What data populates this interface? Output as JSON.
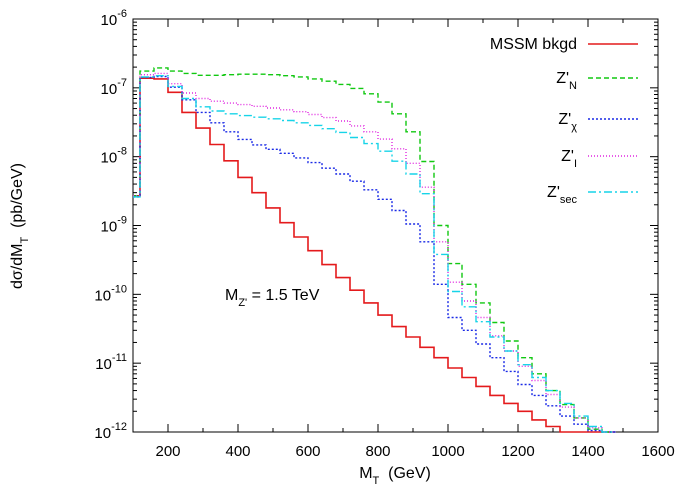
{
  "chart_data": {
    "type": "line",
    "title": "",
    "xlabel": {
      "main": "M",
      "sub": "T",
      "rest": "  (GeV)"
    },
    "ylabel": {
      "main": "dσ/dM",
      "sub": "T",
      "rest": "  (pb/GeV)"
    },
    "xlim": [
      100,
      1600
    ],
    "ylim": [
      1e-12,
      1e-06
    ],
    "yscale": "log",
    "step": true,
    "bin_width": 40,
    "x_bin_starts": [
      100,
      120,
      160,
      200,
      240,
      280,
      320,
      360,
      400,
      440,
      480,
      520,
      560,
      600,
      640,
      680,
      720,
      760,
      800,
      840,
      880,
      920,
      960,
      1000,
      1040,
      1080,
      1120,
      1160,
      1200,
      1240,
      1280,
      1320,
      1360,
      1400,
      1440
    ],
    "xticks": [
      "200",
      "400",
      "600",
      "800",
      "1000",
      "1200",
      "1400",
      "1600"
    ],
    "yticks": [
      {
        "base": "10",
        "exp": "-12"
      },
      {
        "base": "10",
        "exp": "-11"
      },
      {
        "base": "10",
        "exp": "-10"
      },
      {
        "base": "10",
        "exp": "-9"
      },
      {
        "base": "10",
        "exp": "-8"
      },
      {
        "base": "10",
        "exp": "-7"
      },
      {
        "base": "10",
        "exp": "-6"
      }
    ],
    "annotation": {
      "main": "M",
      "sub": "Z'",
      "rest": " = 1.5 TeV"
    },
    "legend_position": "top-right",
    "series": [
      {
        "name": {
          "main": "MSSM bkgd",
          "sub": ""
        },
        "color": "#e41a1c",
        "dash": "",
        "values": [
          2.7e-09,
          1.38e-07,
          1.35e-07,
          8.6e-08,
          4.4e-08,
          2.6e-08,
          1.5e-08,
          8.7e-09,
          5e-09,
          3e-09,
          1.8e-09,
          1.1e-09,
          6.8e-10,
          4.3e-10,
          2.7e-10,
          1.75e-10,
          1.15e-10,
          7.5e-11,
          5e-11,
          3.4e-11,
          2.4e-11,
          1.7e-11,
          1.2e-11,
          8.5e-12,
          6.2e-12,
          4.6e-12,
          3.4e-12,
          2.6e-12,
          2e-12,
          1.5e-12,
          1.2e-12,
          1e-12,
          1e-12,
          1e-12,
          1e-12
        ]
      },
      {
        "name": {
          "main": "Z'",
          "sub": "N"
        },
        "color": "#11c811",
        "dash": "5,3",
        "values": [
          2.7e-09,
          1.75e-07,
          1.95e-07,
          1.75e-07,
          1.62e-07,
          1.52e-07,
          1.52e-07,
          1.55e-07,
          1.58e-07,
          1.58e-07,
          1.55e-07,
          1.5e-07,
          1.44e-07,
          1.35e-07,
          1.25e-07,
          1.12e-07,
          9.8e-08,
          8.2e-08,
          6.2e-08,
          4.2e-08,
          2.3e-08,
          8.5e-09,
          1e-09,
          2.8e-10,
          1.4e-10,
          7.5e-11,
          3.9e-11,
          2.1e-11,
          1.2e-11,
          7e-12,
          4e-12,
          2.5e-12,
          1.6e-12,
          1.1e-12,
          1e-12
        ]
      },
      {
        "name": {
          "main": "Z'",
          "sub": "χ"
        },
        "color": "#1a2ae6",
        "dash": "2,2",
        "values": [
          2.6e-09,
          1.42e-07,
          1.46e-07,
          1.02e-07,
          6.7e-08,
          4.4e-08,
          3.1e-08,
          2.3e-08,
          1.78e-08,
          1.48e-08,
          1.28e-08,
          1.12e-08,
          9.6e-09,
          8.2e-09,
          6.8e-09,
          5.6e-09,
          4.4e-09,
          3.3e-09,
          2.4e-09,
          1.65e-09,
          1.05e-09,
          5.8e-10,
          1.4e-10,
          4.6e-11,
          3e-11,
          1.9e-11,
          1.2e-11,
          7.6e-12,
          4.9e-12,
          3.4e-12,
          2.4e-12,
          1.7e-12,
          1.3e-12,
          1.05e-12,
          1e-12
        ]
      },
      {
        "name": {
          "main": "Z'",
          "sub": "I"
        },
        "color": "#e025e0",
        "dash": "1,2",
        "values": [
          2.7e-09,
          1.55e-07,
          1.62e-07,
          1.15e-07,
          8.4e-08,
          7e-08,
          6.4e-08,
          6e-08,
          5.7e-08,
          5.4e-08,
          5.1e-08,
          4.8e-08,
          4.5e-08,
          4.1e-08,
          3.7e-08,
          3.3e-08,
          2.8e-08,
          2.3e-08,
          1.8e-08,
          1.3e-08,
          8e-09,
          3.6e-09,
          5.8e-10,
          1.5e-10,
          8e-11,
          4.6e-11,
          2.5e-11,
          1.5e-11,
          9e-12,
          5.6e-12,
          3.5e-12,
          2.3e-12,
          1.6e-12,
          1.15e-12,
          1e-12
        ]
      },
      {
        "name": {
          "main": "Z'",
          "sub": "sec"
        },
        "color": "#17d4e8",
        "dash": "8,3,2,3",
        "values": [
          2.6e-09,
          1.44e-07,
          1.5e-07,
          1.05e-07,
          7e-08,
          5.3e-08,
          4.6e-08,
          4.2e-08,
          3.95e-08,
          3.75e-08,
          3.55e-08,
          3.35e-08,
          3.1e-08,
          2.85e-08,
          2.55e-08,
          2.25e-08,
          1.9e-08,
          1.55e-08,
          1.2e-08,
          8.6e-09,
          5.6e-09,
          2.9e-09,
          3.8e-10,
          1.1e-10,
          6.6e-11,
          4e-11,
          2.4e-11,
          1.5e-11,
          9.5e-12,
          6.2e-12,
          4e-12,
          2.6e-12,
          1.7e-12,
          1.2e-12,
          1e-12
        ]
      }
    ]
  }
}
